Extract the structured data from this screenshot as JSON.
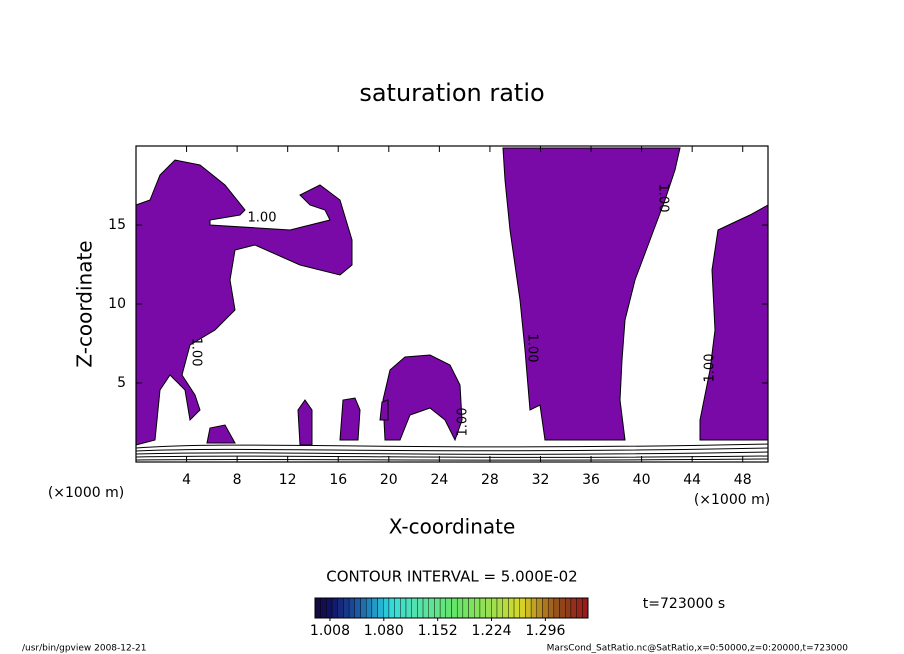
{
  "chart_data": {
    "type": "contour",
    "title": "saturation ratio",
    "x_label": "X-coordinate",
    "y_label": "Z-coordinate",
    "x_unit": "(×1000 m)",
    "xlim": [
      0,
      50
    ],
    "xticks": [
      4,
      8,
      12,
      16,
      20,
      24,
      28,
      32,
      36,
      40,
      44,
      48
    ],
    "ylim": [
      0,
      20
    ],
    "yticks": [
      5,
      10,
      15
    ],
    "contour_label": "1.00",
    "fill_color": "#7a0aa8",
    "contour_interval": "CONTOUR INTERVAL = 5.000E-02",
    "time_label": "t=723000 s",
    "colorbar": {
      "lim": [
        0.988,
        1.353
      ],
      "ticks": [
        1.008,
        {
          "value": 1.08,
          "label": "1.080"
        },
        1.152,
        1.224,
        1.296
      ]
    },
    "footer_left": "/usr/bin/gpview  2008-12-21",
    "footer_right": "MarsCond_SatRatio.nc@SatRatio,x=0:50000,z=0:20000,t=723000"
  }
}
